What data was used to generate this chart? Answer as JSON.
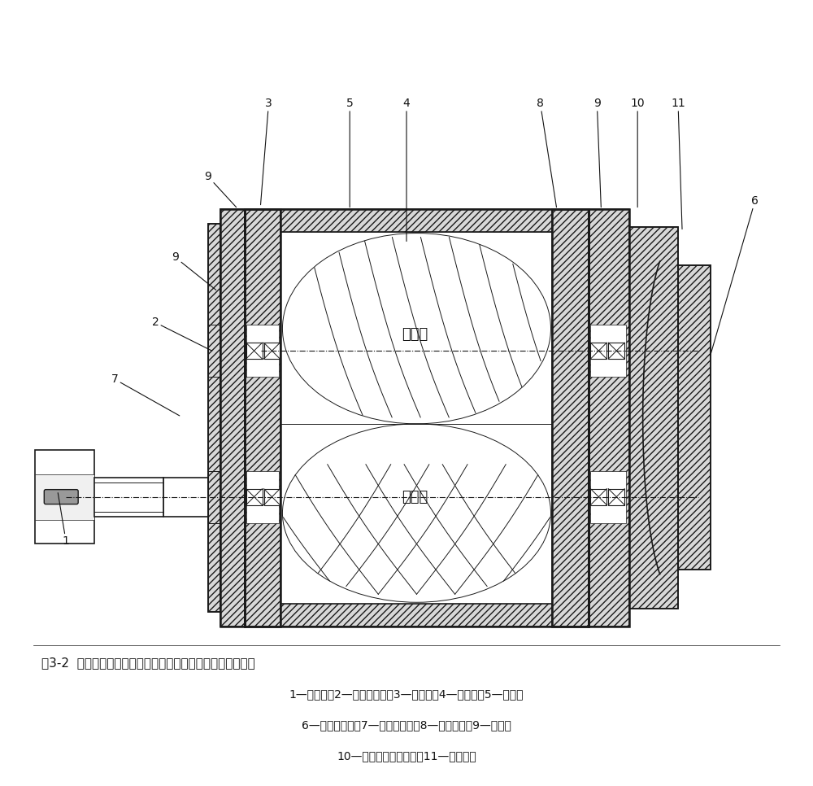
{
  "title_line1": "图3-2  无增速齿轮机构的双螺杆式空压机主机结构图（俯视）",
  "caption_line2": "1—主转子；2—轴承定位环；3—轴承座；4—副转子；5—机壳；",
  "caption_line3": "6—出口端端盖；7—轴密封组件；8—调整垫片；9—轴承；",
  "caption_line4": "10—轴承并帽和定位环；11—蝶形垫片",
  "bg_color": "#ffffff",
  "line_color": "#1a1a1a",
  "label_color": "#111111"
}
